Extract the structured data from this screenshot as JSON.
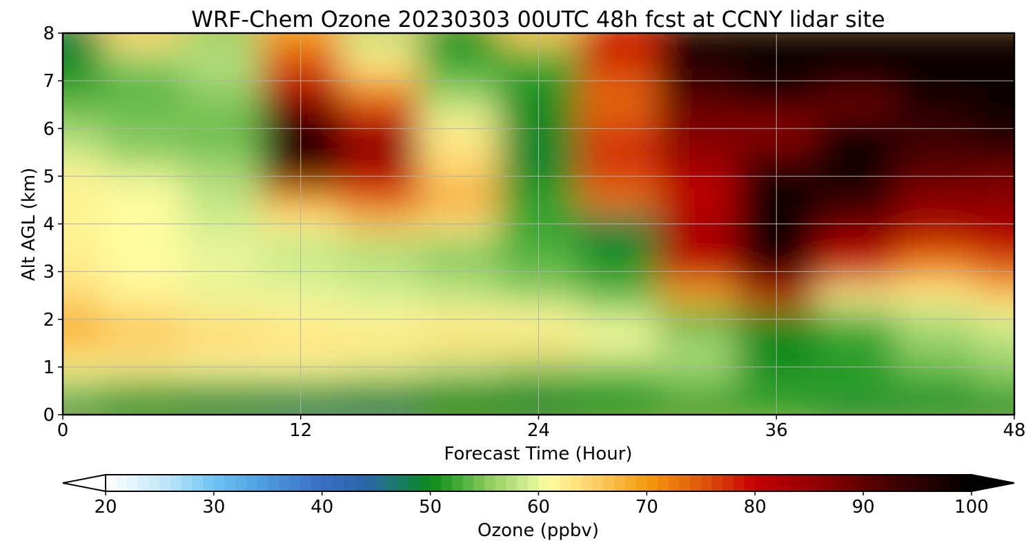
{
  "chart_data": {
    "type": "heatmap",
    "title": "WRF-Chem Ozone  20230303 00UTC 48h fcst at CCNY lidar site",
    "xlabel": "Forecast Time (Hour)",
    "ylabel": "Alt AGL (km)",
    "xlim": [
      0,
      48
    ],
    "ylim": [
      0,
      8
    ],
    "x_ticks": [
      0,
      12,
      24,
      36,
      48
    ],
    "y_ticks": [
      0,
      1,
      2,
      3,
      4,
      5,
      6,
      7,
      8
    ],
    "grid": true,
    "x": [
      0,
      4,
      8,
      12,
      16,
      20,
      24,
      28,
      32,
      36,
      40,
      44,
      48
    ],
    "y": [
      0,
      0.5,
      1,
      1.5,
      2,
      2.5,
      3,
      3.5,
      4,
      4.5,
      5,
      5.5,
      6,
      6.5,
      7,
      7.5,
      8
    ],
    "z": [
      [
        48,
        49,
        48,
        47,
        47,
        50,
        49,
        50,
        50,
        52,
        49,
        49,
        49
      ],
      [
        55,
        52,
        51,
        51,
        50,
        50,
        50,
        52,
        54,
        52,
        52,
        52,
        53
      ],
      [
        62,
        62,
        61,
        61,
        60,
        58,
        56,
        55,
        56,
        50,
        51,
        54,
        56
      ],
      [
        67,
        66,
        65,
        64,
        64,
        64,
        64,
        61,
        57,
        50,
        52,
        56,
        57
      ],
      [
        68,
        65,
        63,
        62,
        61,
        62,
        61,
        59,
        52,
        50,
        53,
        57,
        60
      ],
      [
        64,
        62,
        60,
        60,
        59,
        58,
        56,
        54,
        68,
        78,
        62,
        62,
        66
      ],
      [
        63,
        61,
        60,
        59,
        58,
        56,
        54,
        51,
        80,
        95,
        78,
        70,
        74
      ],
      [
        62,
        61,
        60,
        58,
        57,
        55,
        53,
        50,
        82,
        98,
        82,
        77,
        80
      ],
      [
        62,
        61,
        59,
        62,
        66,
        63,
        52,
        48,
        84,
        99,
        90,
        84,
        84
      ],
      [
        62,
        61,
        58,
        70,
        75,
        70,
        52,
        73,
        80,
        99,
        94,
        86,
        86
      ],
      [
        62,
        60,
        57,
        90,
        80,
        65,
        50,
        76,
        82,
        99,
        99,
        90,
        88
      ],
      [
        59,
        55,
        55,
        98,
        88,
        64,
        49,
        78,
        86,
        90,
        99,
        92,
        94
      ],
      [
        56,
        55,
        54,
        96,
        82,
        62,
        50,
        76,
        87,
        85,
        99,
        94,
        98
      ],
      [
        54,
        54,
        55,
        88,
        76,
        58,
        50,
        74,
        90,
        94,
        88,
        97,
        99
      ],
      [
        51,
        53,
        56,
        79,
        68,
        54,
        51,
        75,
        94,
        99,
        97,
        99,
        99
      ],
      [
        50,
        57,
        58,
        75,
        62,
        52,
        53,
        78,
        97,
        99,
        99,
        99,
        99
      ],
      [
        48,
        65,
        55,
        70,
        57,
        50,
        66,
        80,
        99,
        99,
        99,
        99,
        99
      ]
    ],
    "colorbar": {
      "label": "Ozone  (ppbv)",
      "min": 20,
      "max": 100,
      "ticks": [
        "20",
        "30",
        "40",
        "50",
        "60",
        "70",
        "80",
        "90",
        "100"
      ],
      "extend": "both",
      "stops": [
        {
          "v": 20,
          "color": "#ffffff"
        },
        {
          "v": 26,
          "color": "#b9e4f7"
        },
        {
          "v": 30,
          "color": "#6dc3f2"
        },
        {
          "v": 35,
          "color": "#4a99dd"
        },
        {
          "v": 40,
          "color": "#3a6ec2"
        },
        {
          "v": 44,
          "color": "#2a66a8"
        },
        {
          "v": 47,
          "color": "#1a7a6a"
        },
        {
          "v": 50,
          "color": "#0a8a1a"
        },
        {
          "v": 53,
          "color": "#4bb03a"
        },
        {
          "v": 56,
          "color": "#9cd26a"
        },
        {
          "v": 59,
          "color": "#d2ee90"
        },
        {
          "v": 61,
          "color": "#fffca0"
        },
        {
          "v": 65,
          "color": "#fdd26a"
        },
        {
          "v": 70,
          "color": "#f59a0e"
        },
        {
          "v": 75,
          "color": "#e05a0a"
        },
        {
          "v": 80,
          "color": "#c40000"
        },
        {
          "v": 86,
          "color": "#8e0000"
        },
        {
          "v": 92,
          "color": "#4a0000"
        },
        {
          "v": 100,
          "color": "#000000"
        }
      ]
    }
  }
}
